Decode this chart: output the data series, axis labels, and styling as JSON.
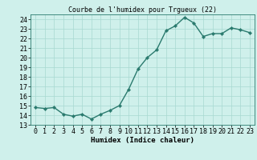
{
  "x": [
    0,
    1,
    2,
    3,
    4,
    5,
    6,
    7,
    8,
    9,
    10,
    11,
    12,
    13,
    14,
    15,
    16,
    17,
    18,
    19,
    20,
    21,
    22,
    23
  ],
  "y": [
    14.8,
    14.7,
    14.8,
    14.1,
    13.9,
    14.1,
    13.6,
    14.1,
    14.5,
    15.0,
    16.7,
    18.8,
    20.0,
    20.8,
    22.8,
    23.3,
    24.2,
    23.6,
    22.2,
    22.5,
    22.5,
    23.1,
    22.9,
    22.6
  ],
  "line_color": "#2a7a6e",
  "marker": "D",
  "marker_size": 2.2,
  "line_width": 1.0,
  "bg_color": "#cff0eb",
  "grid_color": "#a8d8d0",
  "title": "Courbe de l'humidex pour Trgueux (22)",
  "xlabel": "Humidex (Indice chaleur)",
  "ylabel": "",
  "xlim": [
    -0.5,
    23.5
  ],
  "ylim": [
    13,
    24.5
  ],
  "yticks": [
    13,
    14,
    15,
    16,
    17,
    18,
    19,
    20,
    21,
    22,
    23,
    24
  ],
  "xticks": [
    0,
    1,
    2,
    3,
    4,
    5,
    6,
    7,
    8,
    9,
    10,
    11,
    12,
    13,
    14,
    15,
    16,
    17,
    18,
    19,
    20,
    21,
    22,
    23
  ],
  "xlabel_fontsize": 6.5,
  "tick_fontsize": 6.0,
  "title_fontsize": 6.0
}
